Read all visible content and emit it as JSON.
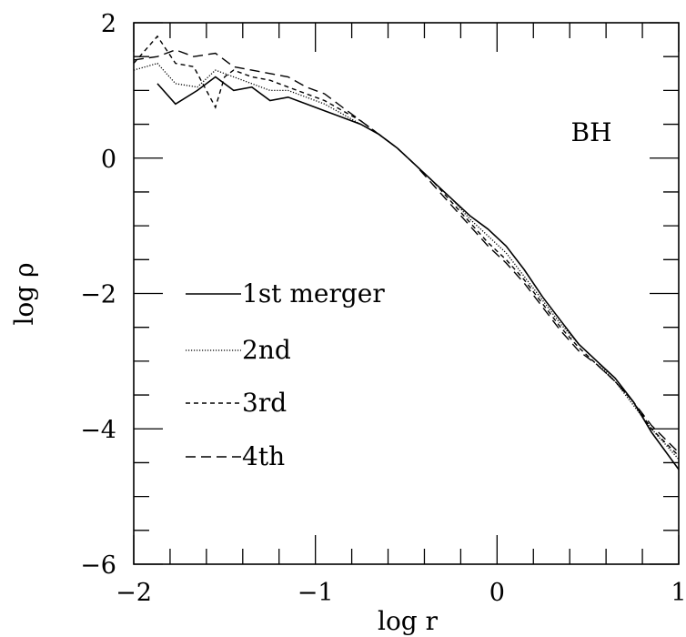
{
  "chart_data": {
    "type": "line",
    "title": "",
    "xlabel": "log r",
    "ylabel": "log ρ",
    "xlim": [
      -2,
      1
    ],
    "ylim": [
      -6,
      2
    ],
    "xticks": [
      -2,
      -1,
      0,
      1
    ],
    "xtick_labels": [
      "−2",
      "−1",
      "0",
      "1"
    ],
    "yticks": [
      -6,
      -4,
      -2,
      0,
      2
    ],
    "ytick_labels": [
      "−6",
      "−4",
      "−2",
      "0",
      "2"
    ],
    "annotation": "BH",
    "legend_placement": "left",
    "grid": false,
    "series": [
      {
        "name": "1st merger",
        "dash": "solid",
        "x": [
          -1.87,
          -1.77,
          -1.65,
          -1.55,
          -1.45,
          -1.35,
          -1.25,
          -1.15,
          -1.05,
          -0.95,
          -0.85,
          -0.75,
          -0.65,
          -0.55,
          -0.45,
          -0.35,
          -0.25,
          -0.15,
          -0.05,
          0.05,
          0.15,
          0.25,
          0.35,
          0.45,
          0.55,
          0.65,
          0.75,
          0.85,
          1.0
        ],
        "y": [
          1.1,
          0.8,
          1.0,
          1.2,
          1.0,
          1.05,
          0.85,
          0.9,
          0.8,
          0.7,
          0.6,
          0.5,
          0.35,
          0.15,
          -0.1,
          -0.35,
          -0.6,
          -0.85,
          -1.05,
          -1.3,
          -1.65,
          -2.05,
          -2.4,
          -2.75,
          -3.0,
          -3.25,
          -3.6,
          -4.05,
          -4.6
        ]
      },
      {
        "name": "2nd",
        "dash": "dotted",
        "x": [
          -2.0,
          -1.87,
          -1.77,
          -1.65,
          -1.55,
          -1.45,
          -1.35,
          -1.25,
          -1.15,
          -1.05,
          -0.95,
          -0.85,
          -0.75,
          -0.65,
          -0.55,
          -0.45,
          -0.35,
          -0.25,
          -0.15,
          -0.05,
          0.05,
          0.15,
          0.25,
          0.35,
          0.45,
          0.55,
          0.65,
          0.75,
          0.85,
          1.0
        ],
        "y": [
          1.3,
          1.4,
          1.1,
          1.05,
          1.3,
          1.2,
          1.1,
          1.0,
          1.0,
          0.9,
          0.8,
          0.65,
          0.5,
          0.35,
          0.15,
          -0.1,
          -0.35,
          -0.6,
          -0.9,
          -1.15,
          -1.4,
          -1.75,
          -2.1,
          -2.45,
          -2.75,
          -3.0,
          -3.3,
          -3.65,
          -4.0,
          -4.45
        ]
      },
      {
        "name": "3rd",
        "dash": "short-dash",
        "x": [
          -2.0,
          -1.87,
          -1.77,
          -1.67,
          -1.6,
          -1.55,
          -1.5,
          -1.45,
          -1.35,
          -1.25,
          -1.15,
          -1.05,
          -0.95,
          -0.85,
          -0.75,
          -0.65,
          -0.55,
          -0.45,
          -0.35,
          -0.25,
          -0.15,
          -0.05,
          0.05,
          0.15,
          0.25,
          0.35,
          0.45,
          0.55,
          0.65,
          0.75,
          0.85,
          1.0
        ],
        "y": [
          1.4,
          1.8,
          1.4,
          1.35,
          1.0,
          0.75,
          1.2,
          1.3,
          1.2,
          1.15,
          1.05,
          0.95,
          0.85,
          0.7,
          0.55,
          0.35,
          0.15,
          -0.1,
          -0.35,
          -0.65,
          -0.95,
          -1.25,
          -1.5,
          -1.8,
          -2.15,
          -2.5,
          -2.8,
          -3.05,
          -3.3,
          -3.6,
          -4.0,
          -4.4
        ]
      },
      {
        "name": "4th",
        "dash": "long-dash",
        "x": [
          -2.0,
          -1.87,
          -1.77,
          -1.67,
          -1.55,
          -1.45,
          -1.35,
          -1.25,
          -1.15,
          -1.05,
          -0.95,
          -0.85,
          -0.75,
          -0.65,
          -0.55,
          -0.45,
          -0.35,
          -0.25,
          -0.15,
          -0.05,
          0.05,
          0.15,
          0.25,
          0.35,
          0.45,
          0.55,
          0.65,
          0.75,
          0.85,
          1.0
        ],
        "y": [
          1.45,
          1.5,
          1.6,
          1.5,
          1.55,
          1.35,
          1.3,
          1.25,
          1.2,
          1.05,
          0.95,
          0.75,
          0.55,
          0.35,
          0.15,
          -0.1,
          -0.4,
          -0.7,
          -1.0,
          -1.3,
          -1.55,
          -1.85,
          -2.2,
          -2.55,
          -2.85,
          -3.05,
          -3.3,
          -3.6,
          -3.95,
          -4.35
        ]
      }
    ]
  }
}
